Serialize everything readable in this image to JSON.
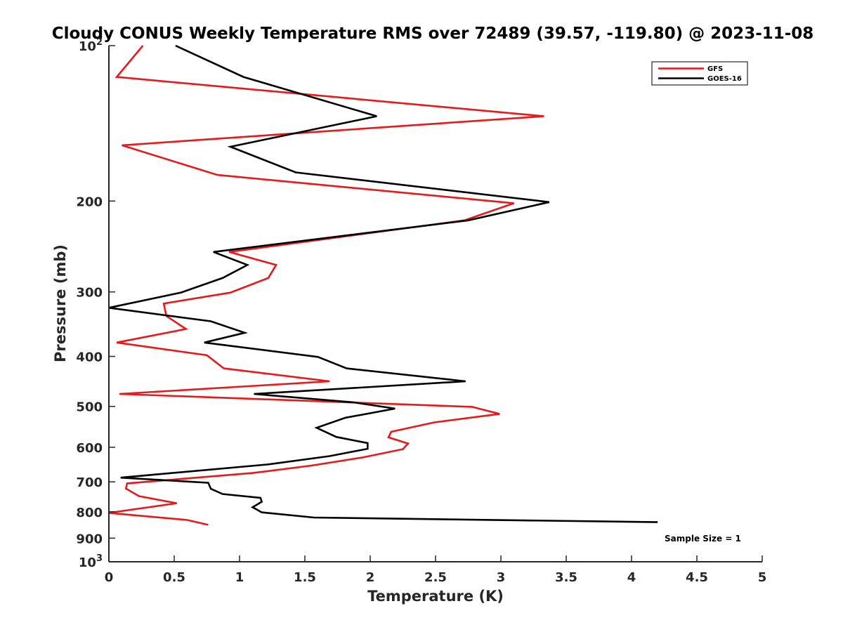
{
  "chart_data": {
    "type": "line",
    "title": "Cloudy CONUS Weekly Temperature RMS over 72489 (39.57, -119.80) @ 2023-11-08",
    "xlabel": "Temperature (K)",
    "ylabel": "Pressure (mb)",
    "xlim": [
      0,
      5
    ],
    "ylim": [
      100,
      1000
    ],
    "yscale": "log",
    "y_reversed": true,
    "x_ticks": [
      0,
      0.5,
      1,
      1.5,
      2,
      2.5,
      3,
      3.5,
      4,
      4.5,
      5
    ],
    "x_tick_labels": [
      "0",
      "0.5",
      "1",
      "1.5",
      "2",
      "2.5",
      "3",
      "3.5",
      "4",
      "4.5",
      "5"
    ],
    "y_ticks": [
      100,
      200,
      300,
      400,
      500,
      600,
      700,
      800,
      900,
      1000
    ],
    "y_tick_labels": [
      {
        "base": "10",
        "exp": "2"
      },
      {
        "base": "200",
        "exp": ""
      },
      {
        "base": "300",
        "exp": ""
      },
      {
        "base": "400",
        "exp": ""
      },
      {
        "base": "500",
        "exp": ""
      },
      {
        "base": "600",
        "exp": ""
      },
      {
        "base": "700",
        "exp": ""
      },
      {
        "base": "800",
        "exp": ""
      },
      {
        "base": "900",
        "exp": ""
      },
      {
        "base": "10",
        "exp": "3"
      }
    ],
    "grid": false,
    "legend_position": "top-right",
    "series": [
      {
        "name": "GFS",
        "color": "#e41a1c",
        "points": [
          {
            "x": 0.26,
            "y": 100
          },
          {
            "x": 0.06,
            "y": 115
          },
          {
            "x": 3.33,
            "y": 137
          },
          {
            "x": 0.1,
            "y": 156
          },
          {
            "x": 0.83,
            "y": 178
          },
          {
            "x": 3.1,
            "y": 202
          },
          {
            "x": 2.72,
            "y": 218
          },
          {
            "x": 0.92,
            "y": 251
          },
          {
            "x": 1.28,
            "y": 266
          },
          {
            "x": 1.22,
            "y": 282
          },
          {
            "x": 0.93,
            "y": 301
          },
          {
            "x": 0.42,
            "y": 316
          },
          {
            "x": 0.44,
            "y": 334
          },
          {
            "x": 0.59,
            "y": 354
          },
          {
            "x": 0.06,
            "y": 376
          },
          {
            "x": 0.75,
            "y": 398
          },
          {
            "x": 0.88,
            "y": 422
          },
          {
            "x": 1.69,
            "y": 447
          },
          {
            "x": 0.08,
            "y": 473
          },
          {
            "x": 2.78,
            "y": 501
          },
          {
            "x": 2.99,
            "y": 517
          },
          {
            "x": 2.49,
            "y": 537
          },
          {
            "x": 2.16,
            "y": 560
          },
          {
            "x": 2.14,
            "y": 574
          },
          {
            "x": 2.29,
            "y": 590
          },
          {
            "x": 2.25,
            "y": 605
          },
          {
            "x": 1.94,
            "y": 628
          },
          {
            "x": 1.55,
            "y": 651
          },
          {
            "x": 1.1,
            "y": 673
          },
          {
            "x": 0.14,
            "y": 705
          },
          {
            "x": 0.13,
            "y": 721
          },
          {
            "x": 0.23,
            "y": 746
          },
          {
            "x": 0.52,
            "y": 770
          },
          {
            "x": 0.0,
            "y": 804
          },
          {
            "x": 0.6,
            "y": 830
          },
          {
            "x": 0.76,
            "y": 848
          }
        ]
      },
      {
        "name": "GOES-16",
        "color": "#000000",
        "points": [
          {
            "x": 0.51,
            "y": 100
          },
          {
            "x": 1.03,
            "y": 115
          },
          {
            "x": 2.05,
            "y": 137
          },
          {
            "x": 0.93,
            "y": 157
          },
          {
            "x": 1.43,
            "y": 176
          },
          {
            "x": 3.37,
            "y": 201
          },
          {
            "x": 2.75,
            "y": 218
          },
          {
            "x": 0.8,
            "y": 251
          },
          {
            "x": 1.06,
            "y": 266
          },
          {
            "x": 0.87,
            "y": 282
          },
          {
            "x": 0.55,
            "y": 301
          },
          {
            "x": 0.0,
            "y": 322
          },
          {
            "x": 0.78,
            "y": 342
          },
          {
            "x": 1.04,
            "y": 360
          },
          {
            "x": 0.73,
            "y": 376
          },
          {
            "x": 1.6,
            "y": 401
          },
          {
            "x": 1.82,
            "y": 422
          },
          {
            "x": 2.73,
            "y": 447
          },
          {
            "x": 1.11,
            "y": 473
          },
          {
            "x": 1.87,
            "y": 491
          },
          {
            "x": 2.19,
            "y": 505
          },
          {
            "x": 1.81,
            "y": 526
          },
          {
            "x": 1.59,
            "y": 550
          },
          {
            "x": 1.74,
            "y": 573
          },
          {
            "x": 1.98,
            "y": 589
          },
          {
            "x": 1.98,
            "y": 604
          },
          {
            "x": 1.69,
            "y": 624
          },
          {
            "x": 1.21,
            "y": 648
          },
          {
            "x": 0.09,
            "y": 687
          },
          {
            "x": 0.76,
            "y": 703
          },
          {
            "x": 0.78,
            "y": 722
          },
          {
            "x": 0.87,
            "y": 739
          },
          {
            "x": 1.16,
            "y": 752
          },
          {
            "x": 1.17,
            "y": 765
          },
          {
            "x": 1.1,
            "y": 784
          },
          {
            "x": 1.17,
            "y": 802
          },
          {
            "x": 1.57,
            "y": 821
          },
          {
            "x": 4.2,
            "y": 838
          }
        ]
      }
    ],
    "annotations": [
      "Sample Size = 1"
    ]
  }
}
